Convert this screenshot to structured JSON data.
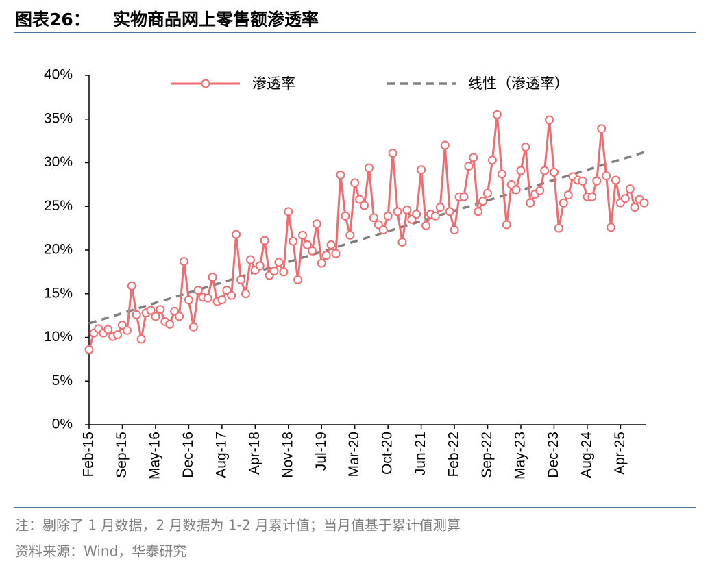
{
  "chart_data": {
    "type": "line",
    "figure_label": "图表26：",
    "title": "实物商品网上零售额渗透率",
    "categories": [
      "Feb-15",
      null,
      null,
      null,
      null,
      null,
      null,
      "Sep-15",
      null,
      null,
      null,
      null,
      null,
      null,
      "May-16",
      null,
      null,
      null,
      null,
      null,
      null,
      "Dec-16",
      null,
      null,
      null,
      null,
      null,
      null,
      "Aug-17",
      null,
      null,
      null,
      null,
      null,
      null,
      "Apr-18",
      null,
      null,
      null,
      null,
      null,
      null,
      "Nov-18",
      null,
      null,
      null,
      null,
      null,
      null,
      "Jul-19",
      null,
      null,
      null,
      null,
      null,
      null,
      "Mar-20",
      null,
      null,
      null,
      null,
      null,
      null,
      "Oct-20",
      null,
      null,
      null,
      null,
      null,
      null,
      "Jun-21",
      null,
      null,
      null,
      null,
      null,
      null,
      "Feb-22",
      null,
      null,
      null,
      null,
      null,
      null,
      "Sep-22",
      null,
      null,
      null,
      null,
      null,
      null,
      "May-23",
      null,
      null,
      null,
      null,
      null,
      null,
      "Dec-23",
      null,
      null,
      null,
      null,
      null,
      null,
      "Aug-24",
      null,
      null,
      null,
      null,
      null,
      null,
      "Apr-25",
      null,
      null,
      null,
      null,
      null
    ],
    "series": [
      {
        "name": "渗透率",
        "color": "#f26b6f",
        "values": [
          8.6,
          10.5,
          11.0,
          10.5,
          10.9,
          10.1,
          10.3,
          11.4,
          10.8,
          15.9,
          12.6,
          9.8,
          12.8,
          13.1,
          12.4,
          13.2,
          11.8,
          11.5,
          13.0,
          12.4,
          18.7,
          14.3,
          11.2,
          15.4,
          14.6,
          14.5,
          16.9,
          14.1,
          14.3,
          15.4,
          14.8,
          21.8,
          16.6,
          15.0,
          18.9,
          17.7,
          18.2,
          21.1,
          17.1,
          17.6,
          18.6,
          17.5,
          24.4,
          21.0,
          16.6,
          21.7,
          20.6,
          19.9,
          23.0,
          18.5,
          19.4,
          20.6,
          19.6,
          28.6,
          23.9,
          21.7,
          27.7,
          25.8,
          25.1,
          29.4,
          23.7,
          22.9,
          22.3,
          23.9,
          31.1,
          24.4,
          20.9,
          24.6,
          23.5,
          24.1,
          29.2,
          22.8,
          24.1,
          23.9,
          24.9,
          32.0,
          24.4,
          22.3,
          26.1,
          26.1,
          29.6,
          30.6,
          24.4,
          25.6,
          26.5,
          30.3,
          35.5,
          28.7,
          22.9,
          27.5,
          26.9,
          29.1,
          31.8,
          25.4,
          26.4,
          26.8,
          29.1,
          34.9,
          28.9,
          22.5,
          25.4,
          26.3,
          28.4,
          28.0,
          27.9,
          26.1,
          26.1,
          27.9,
          33.9,
          28.5,
          22.6,
          28.0,
          25.4,
          25.9,
          27.0,
          24.9,
          25.8,
          25.4
        ]
      }
    ],
    "trend": {
      "name": "线性（渗透率）",
      "color": "#808080",
      "values": [
        11.6,
        31.2
      ]
    },
    "ylim": [
      0,
      40
    ],
    "yticks": [
      {
        "value": 0,
        "label": "0%"
      },
      {
        "value": 5,
        "label": "5%"
      },
      {
        "value": 10,
        "label": "10%"
      },
      {
        "value": 15,
        "label": "15%"
      },
      {
        "value": 20,
        "label": "20%"
      },
      {
        "value": 25,
        "label": "25%"
      },
      {
        "value": 30,
        "label": "30%"
      },
      {
        "value": 35,
        "label": "35%"
      },
      {
        "value": 40,
        "label": "40%"
      }
    ],
    "note": "注：剔除了 1 月数据，2 月数据为 1-2 月累计值；当月值基于累计值测算",
    "source": "资料来源：Wind，华泰研究"
  }
}
